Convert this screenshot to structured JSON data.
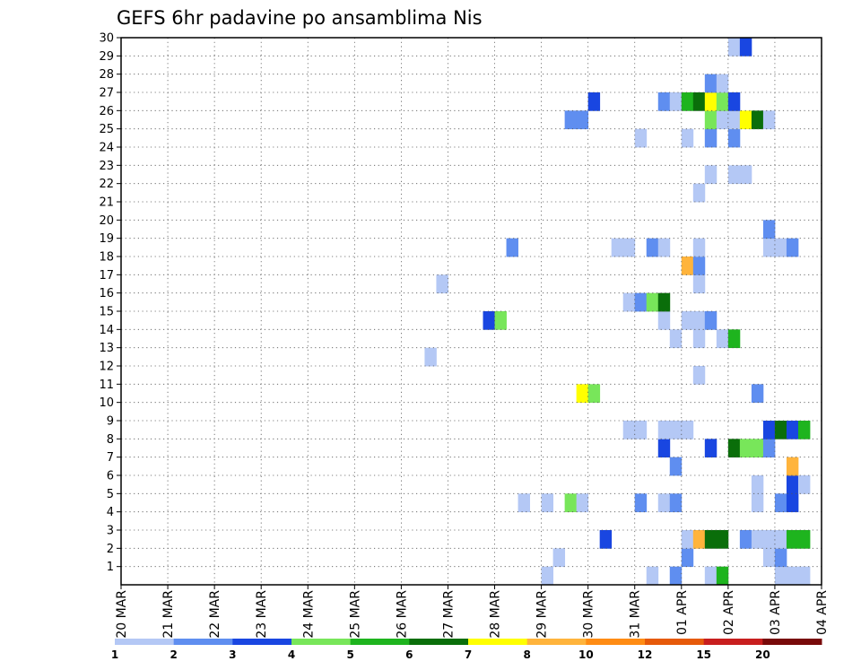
{
  "chart_data": {
    "type": "heatmap",
    "title": "GEFS 6hr padavine po ansamblima Nis",
    "x_tick_labels": [
      "20 MAR",
      "21 MAR",
      "22 MAR",
      "23 MAR",
      "24 MAR",
      "25 MAR",
      "26 MAR",
      "27 MAR",
      "28 MAR",
      "29 MAR",
      "30 MAR",
      "31 MAR",
      "01 APR",
      "02 APR",
      "03 APR",
      "04 APR"
    ],
    "y_tick_labels": [
      "1",
      "2",
      "3",
      "4",
      "5",
      "6",
      "7",
      "8",
      "9",
      "10",
      "11",
      "12",
      "13",
      "14",
      "15",
      "16",
      "17",
      "18",
      "19",
      "20",
      "21",
      "22",
      "23",
      "24",
      "25",
      "26",
      "27",
      "28",
      "29",
      "30"
    ],
    "x_range_days": [
      0,
      15
    ],
    "y_range": [
      0,
      30
    ],
    "grid": true,
    "steps_per_day": 4,
    "colorbar": {
      "labels": [
        "1",
        "2",
        "3",
        "4",
        "5",
        "6",
        "7",
        "8",
        "10",
        "12",
        "15",
        "20"
      ],
      "colors": [
        "#b4c8f5",
        "#5f8ef0",
        "#1946e1",
        "#78e65a",
        "#1eb41e",
        "#0a6e0a",
        "#ffff00",
        "#ffb43c",
        "#ff8c14",
        "#e65a0a",
        "#c81e1e",
        "#780a0a"
      ]
    },
    "cells": [
      [
        36.5,
        0,
        1
      ],
      [
        45.5,
        0,
        1
      ],
      [
        47.5,
        0,
        2
      ],
      [
        50.5,
        0,
        1
      ],
      [
        51.5,
        0,
        5
      ],
      [
        56.5,
        0,
        1
      ],
      [
        57.5,
        0,
        1
      ],
      [
        58.5,
        0,
        1
      ],
      [
        37.5,
        1,
        1
      ],
      [
        48.5,
        1,
        2
      ],
      [
        55.5,
        1,
        1
      ],
      [
        56.5,
        1,
        2
      ],
      [
        41.5,
        2,
        3
      ],
      [
        48.5,
        2,
        1
      ],
      [
        49.5,
        2,
        8
      ],
      [
        50.5,
        2,
        6
      ],
      [
        51.5,
        2,
        6
      ],
      [
        53.5,
        2,
        2
      ],
      [
        54.5,
        2,
        1
      ],
      [
        55.5,
        2,
        1
      ],
      [
        56.5,
        2,
        1
      ],
      [
        57.5,
        2,
        5
      ],
      [
        58.5,
        2,
        5
      ],
      [
        34.5,
        4,
        1
      ],
      [
        36.5,
        4,
        1
      ],
      [
        38.5,
        4,
        4
      ],
      [
        39.5,
        4,
        1
      ],
      [
        44.5,
        4,
        2
      ],
      [
        46.5,
        4,
        1
      ],
      [
        47.5,
        4,
        2
      ],
      [
        54.5,
        4,
        1
      ],
      [
        56.5,
        4,
        2
      ],
      [
        57.5,
        4,
        3
      ],
      [
        54.5,
        5,
        1
      ],
      [
        57.5,
        5,
        3
      ],
      [
        58.5,
        5,
        1
      ],
      [
        47.5,
        6,
        2
      ],
      [
        57.5,
        6,
        8
      ],
      [
        46.5,
        7,
        3
      ],
      [
        50.5,
        7,
        3
      ],
      [
        52.5,
        7,
        6
      ],
      [
        53.5,
        7,
        4
      ],
      [
        54.5,
        7,
        4
      ],
      [
        55.5,
        7,
        2
      ],
      [
        43.5,
        8,
        1
      ],
      [
        44.5,
        8,
        1
      ],
      [
        46.5,
        8,
        1
      ],
      [
        47.5,
        8,
        1
      ],
      [
        48.5,
        8,
        1
      ],
      [
        55.5,
        8,
        3
      ],
      [
        56.5,
        8,
        6
      ],
      [
        57.5,
        8,
        3
      ],
      [
        58.5,
        8,
        5
      ],
      [
        39.5,
        10,
        7
      ],
      [
        40.5,
        10,
        4
      ],
      [
        54.5,
        10,
        2
      ],
      [
        49.5,
        11,
        1
      ],
      [
        26.5,
        12,
        1
      ],
      [
        47.5,
        13,
        1
      ],
      [
        49.5,
        13,
        1
      ],
      [
        51.5,
        13,
        1
      ],
      [
        52.5,
        13,
        5
      ],
      [
        31.5,
        14,
        3
      ],
      [
        32.5,
        14,
        4
      ],
      [
        46.5,
        14,
        1
      ],
      [
        48.5,
        14,
        1
      ],
      [
        49.5,
        14,
        1
      ],
      [
        50.5,
        14,
        2
      ],
      [
        43.5,
        15,
        1
      ],
      [
        44.5,
        15,
        2
      ],
      [
        45.5,
        15,
        4
      ],
      [
        46.5,
        15,
        6
      ],
      [
        27.5,
        16,
        1
      ],
      [
        49.5,
        16,
        1
      ],
      [
        48.5,
        17,
        8
      ],
      [
        49.5,
        17,
        2
      ],
      [
        33.5,
        18,
        2
      ],
      [
        42.5,
        18,
        1
      ],
      [
        43.5,
        18,
        1
      ],
      [
        45.5,
        18,
        2
      ],
      [
        46.5,
        18,
        1
      ],
      [
        49.5,
        18,
        1
      ],
      [
        55.5,
        18,
        1
      ],
      [
        56.5,
        18,
        1
      ],
      [
        57.5,
        18,
        2
      ],
      [
        55.5,
        19,
        2
      ],
      [
        49.5,
        21,
        1
      ],
      [
        50.5,
        22,
        1
      ],
      [
        52.5,
        22,
        1
      ],
      [
        53.5,
        22,
        1
      ],
      [
        44.5,
        24,
        1
      ],
      [
        48.5,
        24,
        1
      ],
      [
        50.5,
        24,
        2
      ],
      [
        52.5,
        24,
        2
      ],
      [
        38.5,
        25,
        2
      ],
      [
        39.5,
        25,
        2
      ],
      [
        50.5,
        25,
        4
      ],
      [
        51.5,
        25,
        1
      ],
      [
        52.5,
        25,
        1
      ],
      [
        53.5,
        25,
        7
      ],
      [
        54.5,
        25,
        6
      ],
      [
        55.5,
        25,
        1
      ],
      [
        40.5,
        26,
        3
      ],
      [
        46.5,
        26,
        2
      ],
      [
        47.5,
        26,
        1
      ],
      [
        48.5,
        26,
        5
      ],
      [
        49.5,
        26,
        6
      ],
      [
        50.5,
        26,
        7
      ],
      [
        51.5,
        26,
        4
      ],
      [
        52.5,
        26,
        3
      ],
      [
        50.5,
        27,
        2
      ],
      [
        51.5,
        27,
        1
      ],
      [
        52.5,
        29,
        1
      ],
      [
        53.5,
        29,
        3
      ]
    ]
  }
}
